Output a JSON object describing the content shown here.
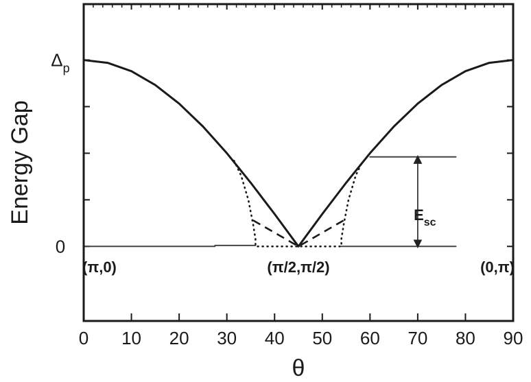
{
  "chart_data": {
    "type": "line",
    "xlabel": "θ",
    "ylabel": "Energy Gap",
    "xlim": [
      0,
      90
    ],
    "ylim": [
      -0.4,
      1.3
    ],
    "x_ticks": [
      0,
      10,
      20,
      30,
      40,
      50,
      60,
      70,
      80,
      90
    ],
    "y_tick_labels": [
      {
        "value": 0,
        "text": "0"
      },
      {
        "value": 1,
        "text": "Δ",
        "sub": "p"
      }
    ],
    "series": [
      {
        "style": "solid",
        "x": [
          0,
          5,
          10,
          15,
          20,
          25,
          30,
          35,
          40,
          45,
          50,
          55,
          60,
          65,
          70,
          75,
          80,
          85,
          90
        ],
        "y": [
          1.0,
          0.985,
          0.94,
          0.866,
          0.766,
          0.643,
          0.5,
          0.342,
          0.174,
          0.0,
          0.174,
          0.342,
          0.5,
          0.643,
          0.766,
          0.866,
          0.94,
          0.985,
          1.0
        ]
      },
      {
        "style": "dotted",
        "x": [
          31.5,
          33,
          34.5,
          35.5,
          36,
          36,
          45,
          54,
          54,
          54.5,
          55.5,
          57,
          58.5
        ],
        "y": [
          0.46,
          0.38,
          0.25,
          0.12,
          0.04,
          0.0,
          0.0,
          0.0,
          0.04,
          0.12,
          0.25,
          0.38,
          0.46
        ]
      },
      {
        "style": "dashed",
        "x": [
          35.5,
          45,
          54.5
        ],
        "y": [
          0.14,
          0.0,
          0.14
        ]
      },
      {
        "style": "solid-thin",
        "x": [
          0,
          27.5
        ],
        "y": [
          0,
          0
        ]
      },
      {
        "style": "solid-thin",
        "x": [
          27.5,
          36
        ],
        "y": [
          0.005,
          0.005
        ]
      },
      {
        "style": "solid-thin",
        "x": [
          54,
          78
        ],
        "y": [
          0,
          0
        ]
      },
      {
        "style": "solid-thin",
        "x": [
          60,
          78
        ],
        "y": [
          0.48,
          0.48
        ]
      }
    ],
    "annotations": [
      {
        "text": "(π,0)",
        "x": 3.3,
        "y": -0.11
      },
      {
        "text": "(π/2,π/2)",
        "x": 45,
        "y": -0.11
      },
      {
        "text": "(0,π)",
        "x": 86.7,
        "y": -0.11
      },
      {
        "text": "E",
        "sub": "sc",
        "x": 71.5,
        "y": 0.17
      }
    ],
    "esc_arrow": {
      "x": 70,
      "y_from": 0.0,
      "y_to": 0.48
    }
  }
}
